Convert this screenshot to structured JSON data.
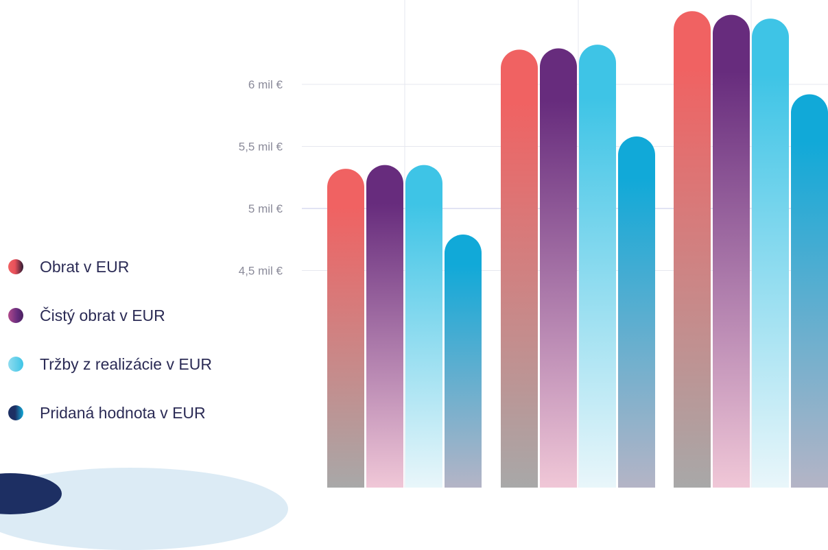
{
  "chart_data": {
    "type": "bar",
    "title": "",
    "xlabel": "",
    "ylabel": "",
    "categories": [
      "",
      "",
      ""
    ],
    "ylim": [
      4.0,
      6.5
    ],
    "y_ticks": [
      {
        "value": 4.5,
        "label": "4,5 mil €"
      },
      {
        "value": 5.0,
        "label": "5 mil €"
      },
      {
        "value": 5.5,
        "label": "5,5 mil €"
      },
      {
        "value": 6.0,
        "label": "6 mil €"
      }
    ],
    "series": [
      {
        "name": "Obrat v EUR",
        "values": [
          5.32,
          6.28,
          6.59
        ],
        "color_top": "#f06262",
        "color_bottom": "#a8a8a8"
      },
      {
        "name": "Čistý obrat v EUR",
        "values": [
          5.35,
          6.29,
          6.56
        ],
        "color_top": "#672c7d",
        "color_bottom": "#f0c7d7"
      },
      {
        "name": "Tržby z realizácie v EUR",
        "values": [
          5.35,
          6.32,
          6.53
        ],
        "color_top": "#3ec4e6",
        "color_bottom": "#e9f6fa"
      },
      {
        "name": "Pridaná hodnota v EUR",
        "values": [
          4.79,
          5.58,
          5.92
        ],
        "color_top": "#11a9d8",
        "color_bottom": "#b4b4c6"
      }
    ],
    "grid": true,
    "legend_position": "left"
  }
}
